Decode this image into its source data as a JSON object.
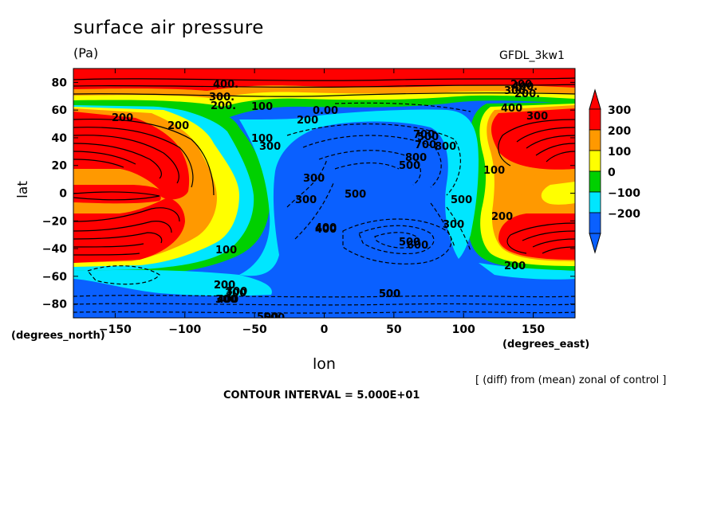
{
  "chart_data": {
    "type": "contour",
    "title": "surface air pressure",
    "units": "(Pa)",
    "model": "GFDL_3kw1",
    "xlabel": "lon",
    "ylabel": "lat",
    "x_units_label": "(degrees_east)",
    "y_units_label": "(degrees_north)",
    "xlim": [
      -180,
      180
    ],
    "ylim": [
      -90,
      90
    ],
    "x_ticks": [
      -150,
      -100,
      -50,
      0,
      50,
      100,
      150
    ],
    "y_ticks": [
      -80,
      -60,
      -40,
      -20,
      0,
      20,
      40,
      60,
      80
    ],
    "colorbar": {
      "levels": [
        -200,
        -100,
        0,
        100,
        200,
        300
      ],
      "colors": [
        "#0a60ff",
        "#00e6ff",
        "#00d000",
        "#ffff00",
        "#ff9900",
        "#ff0000"
      ]
    },
    "contour_labels": [
      "400.",
      "300.",
      "200.",
      "100",
      "200",
      "0.00",
      "200",
      "100",
      "300",
      "200",
      "500",
      "700",
      "800",
      "500",
      "300",
      "500",
      "100",
      "200",
      "400",
      "300",
      "100",
      "200",
      "500",
      "300",
      "400",
      "500",
      "500",
      "700",
      "800",
      "500",
      "300",
      "600",
      "200",
      "300",
      "400",
      "500.",
      "500",
      "300",
      "400",
      "200",
      "400.",
      "300",
      "200.",
      "300",
      "200"
    ],
    "note_diff": "[ (diff) from (mean) zonal of control ]",
    "note_contour": "CONTOUR INTERVAL = 5.000E+01"
  }
}
